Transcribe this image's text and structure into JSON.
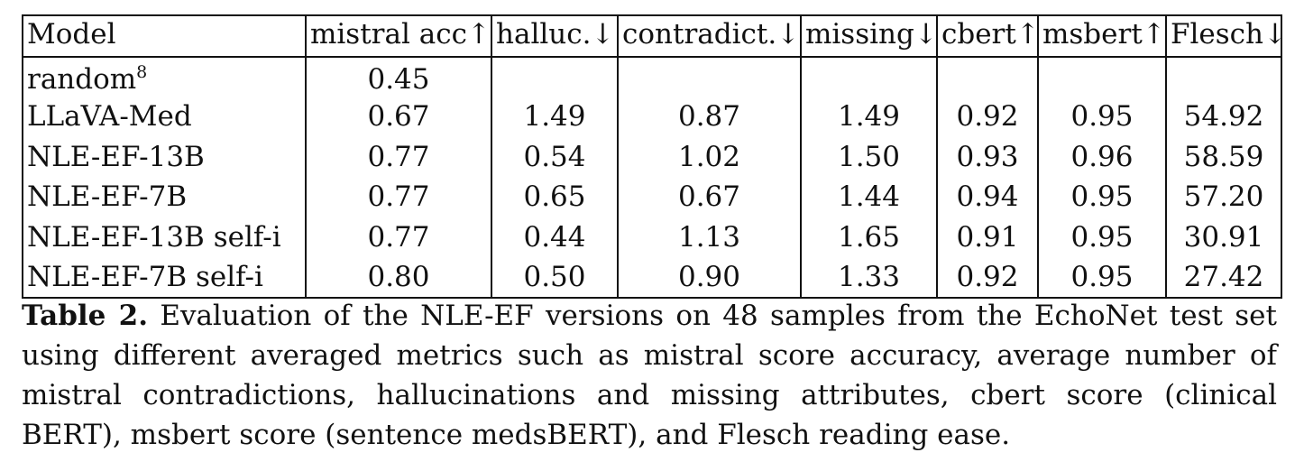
{
  "table": {
    "headers": [
      "Model",
      "mistral acc↑",
      "halluc.↓",
      "contradict.↓",
      "missing↓",
      "cbert↑",
      "msbert↑",
      "Flesch↓"
    ],
    "rows": [
      {
        "model": "random",
        "footnote": "8",
        "cells": [
          "0.45",
          "",
          "",
          "",
          "",
          "",
          ""
        ]
      },
      {
        "model": "LLaVA-Med",
        "footnote": "",
        "cells": [
          "0.67",
          "1.49",
          "0.87",
          "1.49",
          "0.92",
          "0.95",
          "54.92"
        ]
      },
      {
        "model": "NLE-EF-13B",
        "footnote": "",
        "cells": [
          "0.77",
          "0.54",
          "1.02",
          "1.50",
          "0.93",
          "0.96",
          "58.59"
        ]
      },
      {
        "model": "NLE-EF-7B",
        "footnote": "",
        "cells": [
          "0.77",
          "0.65",
          "0.67",
          "1.44",
          "0.94",
          "0.95",
          "57.20"
        ]
      },
      {
        "model": "NLE-EF-13B self-i",
        "footnote": "",
        "cells": [
          "0.77",
          "0.44",
          "1.13",
          "1.65",
          "0.91",
          "0.95",
          "30.91"
        ]
      },
      {
        "model": "NLE-EF-7B self-i",
        "footnote": "",
        "cells": [
          "0.80",
          "0.50",
          "0.90",
          "1.33",
          "0.92",
          "0.95",
          "27.42"
        ]
      }
    ]
  },
  "caption": {
    "label": "Table 2.",
    "text": "Evaluation of the NLE-EF versions on 48 samples from the EchoNet test set using different averaged metrics such as mistral score accuracy, average number of mistral contradictions, hallucinations and missing attributes, cbert score (clinical BERT), msbert score (sentence medsBERT), and Flesch reading ease."
  }
}
